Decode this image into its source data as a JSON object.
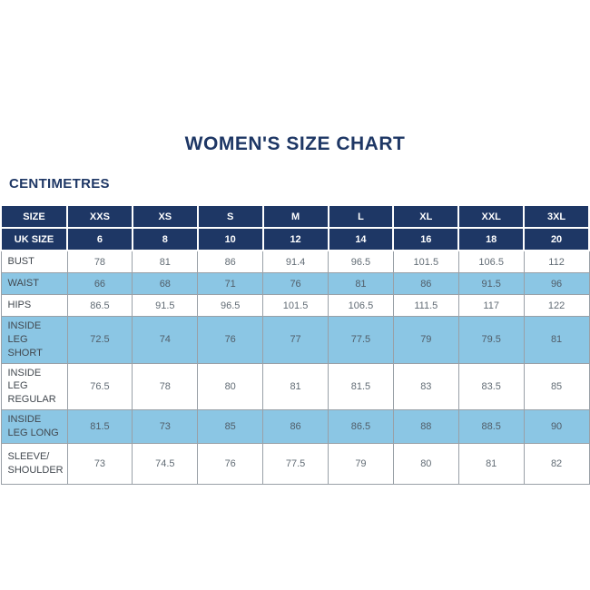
{
  "page": {
    "title": "WOMEN'S SIZE CHART",
    "unit_label": "CENTIMETRES"
  },
  "colors": {
    "navy": "#1e3765",
    "light_blue": "#8bc6e4",
    "label_text": "#41474e",
    "value_text": "#626c75"
  },
  "table": {
    "size_row": {
      "label": "SIZE",
      "values": [
        "XXS",
        "XS",
        "S",
        "M",
        "L",
        "XL",
        "XXL",
        "3XL"
      ]
    },
    "uk_size_row": {
      "label": "UK SIZE",
      "values": [
        "6",
        "8",
        "10",
        "12",
        "14",
        "16",
        "18",
        "20"
      ]
    },
    "rows": [
      {
        "label": "BUST",
        "shaded": false,
        "values": [
          "78",
          "81",
          "86",
          "91.4",
          "96.5",
          "101.5",
          "106.5",
          "112"
        ]
      },
      {
        "label": "WAIST",
        "shaded": true,
        "values": [
          "66",
          "68",
          "71",
          "76",
          "81",
          "86",
          "91.5",
          "96"
        ]
      },
      {
        "label": "HIPS",
        "shaded": false,
        "values": [
          "86.5",
          "91.5",
          "96.5",
          "101.5",
          "106.5",
          "111.5",
          "117",
          "122"
        ]
      },
      {
        "label": "INSIDE LEG SHORT",
        "shaded": true,
        "values": [
          "72.5",
          "74",
          "76",
          "77",
          "77.5",
          "79",
          "79.5",
          "81"
        ]
      },
      {
        "label": "INSIDE LEG REGULAR",
        "shaded": false,
        "values": [
          "76.5",
          "78",
          "80",
          "81",
          "81.5",
          "83",
          "83.5",
          "85"
        ]
      },
      {
        "label": "INSIDE LEG LONG",
        "shaded": true,
        "values": [
          "81.5",
          "73",
          "85",
          "86",
          "86.5",
          "88",
          "88.5",
          "90"
        ]
      },
      {
        "label": "SLEEVE/ SHOULDER",
        "shaded": false,
        "values": [
          "73",
          "74.5",
          "76",
          "77.5",
          "79",
          "80",
          "81",
          "82"
        ]
      }
    ]
  }
}
